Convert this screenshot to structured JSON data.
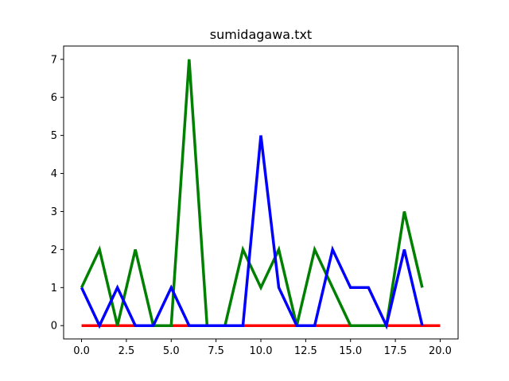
{
  "chart_data": {
    "type": "line",
    "title": "sumidagawa.txt",
    "xlabel": "",
    "ylabel": "",
    "xlim": [
      -1,
      21
    ],
    "ylim": [
      -0.35,
      7.35
    ],
    "grid": false,
    "legend": "none",
    "x_ticks": [
      0,
      2.5,
      5,
      7.5,
      10,
      12.5,
      15,
      17.5,
      20
    ],
    "x_tick_labels": [
      "0.0",
      "2.5",
      "5.0",
      "7.5",
      "10.0",
      "12.5",
      "15.0",
      "17.5",
      "20.0"
    ],
    "y_ticks": [
      0,
      1,
      2,
      3,
      4,
      5,
      6,
      7
    ],
    "y_tick_labels": [
      "0",
      "1",
      "2",
      "3",
      "4",
      "5",
      "6",
      "7"
    ],
    "series": [
      {
        "color": "#ff0000",
        "x": [
          0,
          20
        ],
        "values": [
          0,
          0
        ]
      },
      {
        "color": "#008000",
        "x": [
          0,
          1,
          2,
          3,
          4,
          5,
          6,
          7,
          8,
          9,
          10,
          11,
          12,
          13,
          14,
          15,
          16,
          17,
          18,
          19
        ],
        "values": [
          1,
          2,
          0,
          2,
          0,
          0,
          7,
          0,
          0,
          2,
          1,
          2,
          0,
          2,
          1,
          0,
          0,
          0,
          3,
          1
        ]
      },
      {
        "color": "#0000ff",
        "x": [
          0,
          1,
          2,
          3,
          4,
          5,
          6,
          7,
          8,
          9,
          10,
          11,
          12,
          13,
          14,
          15,
          16,
          17,
          18,
          19
        ],
        "values": [
          1,
          0,
          1,
          0,
          0,
          1,
          0,
          0,
          0,
          0,
          5,
          1,
          0,
          0,
          2,
          1,
          1,
          0,
          2,
          0
        ]
      }
    ]
  }
}
